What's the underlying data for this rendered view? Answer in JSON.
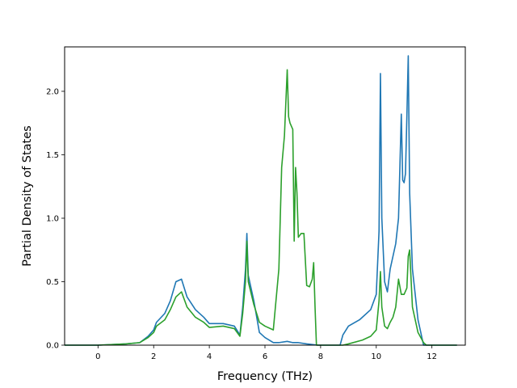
{
  "chart_data": {
    "type": "line",
    "xlabel": "Frequency (THz)",
    "ylabel": "Partial Density of States",
    "xlim": [
      -1.2,
      13.2
    ],
    "ylim": [
      0,
      2.35
    ],
    "xticks": [
      0,
      2,
      4,
      6,
      8,
      10,
      12
    ],
    "xtick_labels": [
      "0",
      "2",
      "4",
      "6",
      "8",
      "10",
      "12"
    ],
    "yticks": [
      0,
      0.5,
      1.0,
      1.5,
      2.0
    ],
    "ytick_labels": [
      "0.0",
      "0.5",
      "1.0",
      "1.5",
      "2.0"
    ],
    "grid": false,
    "series": [
      {
        "color": "#1f77b4",
        "x": [
          -1.2,
          0.0,
          1.0,
          1.5,
          1.8,
          2.0,
          2.1,
          2.4,
          2.6,
          2.8,
          3.0,
          3.2,
          3.5,
          3.8,
          4.0,
          4.5,
          4.9,
          5.1,
          5.2,
          5.3,
          5.35,
          5.4,
          5.6,
          5.8,
          6.0,
          6.3,
          6.5,
          6.8,
          7.0,
          7.2,
          7.5,
          7.9,
          8.7,
          8.8,
          9.0,
          9.4,
          9.8,
          10.0,
          10.1,
          10.15,
          10.2,
          10.3,
          10.4,
          10.5,
          10.7,
          10.8,
          10.9,
          10.95,
          11.0,
          11.05,
          11.1,
          11.15,
          11.2,
          11.3,
          11.5,
          11.7,
          12.0,
          12.9
        ],
        "y": [
          0.0,
          0.0,
          0.01,
          0.02,
          0.07,
          0.12,
          0.18,
          0.25,
          0.35,
          0.5,
          0.52,
          0.38,
          0.28,
          0.22,
          0.17,
          0.17,
          0.15,
          0.08,
          0.3,
          0.6,
          0.88,
          0.55,
          0.35,
          0.1,
          0.06,
          0.02,
          0.02,
          0.03,
          0.02,
          0.02,
          0.01,
          0.0,
          0.0,
          0.08,
          0.15,
          0.2,
          0.28,
          0.4,
          0.9,
          2.14,
          1.0,
          0.5,
          0.42,
          0.6,
          0.8,
          1.0,
          1.82,
          1.3,
          1.28,
          1.35,
          1.8,
          2.28,
          1.2,
          0.6,
          0.2,
          0.0,
          0.0,
          0.0
        ]
      },
      {
        "color": "#2ca02c",
        "x": [
          -1.2,
          0.0,
          1.0,
          1.5,
          1.8,
          2.0,
          2.1,
          2.4,
          2.6,
          2.8,
          3.0,
          3.2,
          3.5,
          3.8,
          4.0,
          4.5,
          4.9,
          5.1,
          5.2,
          5.3,
          5.35,
          5.4,
          5.6,
          5.8,
          6.0,
          6.3,
          6.5,
          6.6,
          6.7,
          6.8,
          6.85,
          6.9,
          7.0,
          7.05,
          7.1,
          7.15,
          7.2,
          7.3,
          7.4,
          7.5,
          7.6,
          7.7,
          7.75,
          7.8,
          7.85,
          8.0,
          8.8,
          9.0,
          9.5,
          9.8,
          10.0,
          10.1,
          10.15,
          10.2,
          10.3,
          10.4,
          10.5,
          10.6,
          10.7,
          10.8,
          10.9,
          11.0,
          11.1,
          11.15,
          11.2,
          11.3,
          11.5,
          11.7,
          11.8,
          12.0,
          12.9
        ],
        "y": [
          0.0,
          0.0,
          0.01,
          0.02,
          0.06,
          0.1,
          0.15,
          0.2,
          0.28,
          0.38,
          0.42,
          0.3,
          0.22,
          0.18,
          0.14,
          0.15,
          0.13,
          0.07,
          0.25,
          0.5,
          0.82,
          0.5,
          0.32,
          0.18,
          0.15,
          0.12,
          0.6,
          1.4,
          1.65,
          2.17,
          1.8,
          1.75,
          1.7,
          0.82,
          1.4,
          1.2,
          0.85,
          0.88,
          0.88,
          0.47,
          0.46,
          0.52,
          0.65,
          0.3,
          0.0,
          0.0,
          0.0,
          0.01,
          0.04,
          0.07,
          0.12,
          0.35,
          0.58,
          0.3,
          0.15,
          0.13,
          0.18,
          0.22,
          0.3,
          0.52,
          0.4,
          0.4,
          0.45,
          0.7,
          0.75,
          0.3,
          0.1,
          0.02,
          0.0,
          0.0,
          0.0
        ]
      }
    ]
  }
}
